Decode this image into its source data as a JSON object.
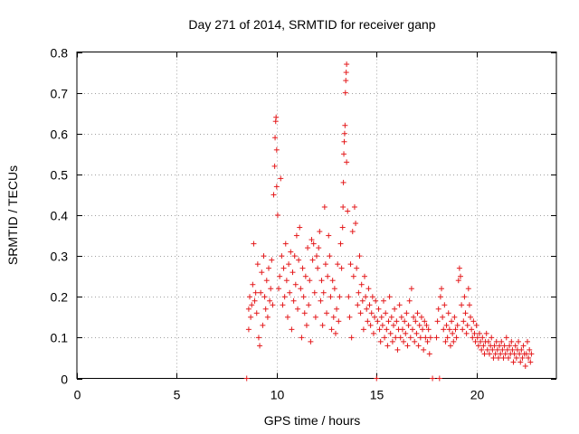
{
  "chart_data": {
    "type": "scatter",
    "title": "Day 271 of 2014, SRMTID for receiver ganp",
    "xlabel": "GPS time / hours",
    "ylabel": "SRMTID / TECUs",
    "xlim": [
      0,
      24
    ],
    "ylim": [
      0,
      0.8
    ],
    "x_ticks": [
      0,
      5,
      10,
      15,
      20
    ],
    "x_tick_labels": [
      "0",
      "5",
      "10",
      "15",
      "20"
    ],
    "y_ticks": [
      0,
      0.1,
      0.2,
      0.3,
      0.4,
      0.5,
      0.6,
      0.7,
      0.8
    ],
    "y_tick_labels": [
      "0",
      "0.1",
      "0.2",
      "0.3",
      "0.4",
      "0.5",
      "0.6",
      "0.7",
      "0.8"
    ],
    "grid": true,
    "legend": "none",
    "marker": "+",
    "color": "#e41a1c",
    "series": [
      {
        "name": "SRMTID",
        "points": [
          [
            8.5,
            0.0
          ],
          [
            8.6,
            0.17
          ],
          [
            8.6,
            0.12
          ],
          [
            8.65,
            0.2
          ],
          [
            8.7,
            0.15
          ],
          [
            8.75,
            0.18
          ],
          [
            8.8,
            0.23
          ],
          [
            8.85,
            0.33
          ],
          [
            8.9,
            0.19
          ],
          [
            8.95,
            0.21
          ],
          [
            9.0,
            0.16
          ],
          [
            9.05,
            0.28
          ],
          [
            9.1,
            0.1
          ],
          [
            9.15,
            0.08
          ],
          [
            9.2,
            0.21
          ],
          [
            9.25,
            0.26
          ],
          [
            9.3,
            0.13
          ],
          [
            9.35,
            0.3
          ],
          [
            9.4,
            0.2
          ],
          [
            9.45,
            0.17
          ],
          [
            9.5,
            0.24
          ],
          [
            9.55,
            0.15
          ],
          [
            9.6,
            0.27
          ],
          [
            9.65,
            0.19
          ],
          [
            9.7,
            0.22
          ],
          [
            9.75,
            0.29
          ],
          [
            9.8,
            0.18
          ],
          [
            9.85,
            0.45
          ],
          [
            9.9,
            0.52
          ],
          [
            9.92,
            0.59
          ],
          [
            9.95,
            0.63
          ],
          [
            9.97,
            0.64
          ],
          [
            10.0,
            0.56
          ],
          [
            10.0,
            0.47
          ],
          [
            10.05,
            0.4
          ],
          [
            10.1,
            0.22
          ],
          [
            10.15,
            0.25
          ],
          [
            10.2,
            0.49
          ],
          [
            10.25,
            0.3
          ],
          [
            10.3,
            0.18
          ],
          [
            10.35,
            0.27
          ],
          [
            10.4,
            0.2
          ],
          [
            10.45,
            0.33
          ],
          [
            10.5,
            0.24
          ],
          [
            10.55,
            0.15
          ],
          [
            10.6,
            0.28
          ],
          [
            10.65,
            0.21
          ],
          [
            10.7,
            0.31
          ],
          [
            10.75,
            0.12
          ],
          [
            10.8,
            0.26
          ],
          [
            10.85,
            0.19
          ],
          [
            10.9,
            0.3
          ],
          [
            10.95,
            0.23
          ],
          [
            11.0,
            0.35
          ],
          [
            11.05,
            0.17
          ],
          [
            11.1,
            0.29
          ],
          [
            11.15,
            0.37
          ],
          [
            11.2,
            0.22
          ],
          [
            11.25,
            0.1
          ],
          [
            11.3,
            0.27
          ],
          [
            11.35,
            0.2
          ],
          [
            11.4,
            0.16
          ],
          [
            11.45,
            0.25
          ],
          [
            11.5,
            0.13
          ],
          [
            11.55,
            0.32
          ],
          [
            11.6,
            0.18
          ],
          [
            11.65,
            0.24
          ],
          [
            11.7,
            0.09
          ],
          [
            11.75,
            0.34
          ],
          [
            11.8,
            0.29
          ],
          [
            11.85,
            0.33
          ],
          [
            11.9,
            0.21
          ],
          [
            11.95,
            0.15
          ],
          [
            12.0,
            0.3
          ],
          [
            12.05,
            0.27
          ],
          [
            12.1,
            0.32
          ],
          [
            12.15,
            0.36
          ],
          [
            12.2,
            0.19
          ],
          [
            12.25,
            0.24
          ],
          [
            12.3,
            0.13
          ],
          [
            12.35,
            0.21
          ],
          [
            12.4,
            0.42
          ],
          [
            12.45,
            0.28
          ],
          [
            12.5,
            0.16
          ],
          [
            12.55,
            0.25
          ],
          [
            12.6,
            0.35
          ],
          [
            12.65,
            0.3
          ],
          [
            12.7,
            0.2
          ],
          [
            12.75,
            0.12
          ],
          [
            12.8,
            0.24
          ],
          [
            12.85,
            0.15
          ],
          [
            12.9,
            0.22
          ],
          [
            12.95,
            0.11
          ],
          [
            13.0,
            0.17
          ],
          [
            13.05,
            0.28
          ],
          [
            13.1,
            0.14
          ],
          [
            13.15,
            0.2
          ],
          [
            13.2,
            0.33
          ],
          [
            13.25,
            0.27
          ],
          [
            13.3,
            0.37
          ],
          [
            13.32,
            0.42
          ],
          [
            13.34,
            0.48
          ],
          [
            13.36,
            0.55
          ],
          [
            13.38,
            0.58
          ],
          [
            13.4,
            0.6
          ],
          [
            13.42,
            0.62
          ],
          [
            13.44,
            0.7
          ],
          [
            13.46,
            0.73
          ],
          [
            13.48,
            0.75
          ],
          [
            13.5,
            0.77
          ],
          [
            13.5,
            0.53
          ],
          [
            13.55,
            0.41
          ],
          [
            13.6,
            0.2
          ],
          [
            13.65,
            0.15
          ],
          [
            13.7,
            0.28
          ],
          [
            13.75,
            0.1
          ],
          [
            13.8,
            0.36
          ],
          [
            13.85,
            0.25
          ],
          [
            13.9,
            0.42
          ],
          [
            13.95,
            0.38
          ],
          [
            14.0,
            0.27
          ],
          [
            14.05,
            0.18
          ],
          [
            14.1,
            0.21
          ],
          [
            14.15,
            0.3
          ],
          [
            14.2,
            0.16
          ],
          [
            14.25,
            0.23
          ],
          [
            14.3,
            0.19
          ],
          [
            14.35,
            0.12
          ],
          [
            14.4,
            0.25
          ],
          [
            14.45,
            0.2
          ],
          [
            14.5,
            0.17
          ],
          [
            14.55,
            0.14
          ],
          [
            14.6,
            0.22
          ],
          [
            14.65,
            0.18
          ],
          [
            14.7,
            0.13
          ],
          [
            14.75,
            0.16
          ],
          [
            14.8,
            0.2
          ],
          [
            14.85,
            0.11
          ],
          [
            14.9,
            0.15
          ],
          [
            14.95,
            0.19
          ],
          [
            15.0,
            0.0
          ],
          [
            15.05,
            0.14
          ],
          [
            15.1,
            0.17
          ],
          [
            15.15,
            0.12
          ],
          [
            15.2,
            0.09
          ],
          [
            15.25,
            0.15
          ],
          [
            15.3,
            0.13
          ],
          [
            15.35,
            0.19
          ],
          [
            15.4,
            0.1
          ],
          [
            15.45,
            0.16
          ],
          [
            15.5,
            0.12
          ],
          [
            15.55,
            0.08
          ],
          [
            15.6,
            0.14
          ],
          [
            15.65,
            0.2
          ],
          [
            15.7,
            0.11
          ],
          [
            15.75,
            0.15
          ],
          [
            15.8,
            0.09
          ],
          [
            15.85,
            0.13
          ],
          [
            15.9,
            0.17
          ],
          [
            15.95,
            0.1
          ],
          [
            16.0,
            0.14
          ],
          [
            16.05,
            0.07
          ],
          [
            16.1,
            0.12
          ],
          [
            16.15,
            0.18
          ],
          [
            16.2,
            0.1
          ],
          [
            16.25,
            0.15
          ],
          [
            16.3,
            0.12
          ],
          [
            16.35,
            0.09
          ],
          [
            16.4,
            0.14
          ],
          [
            16.45,
            0.11
          ],
          [
            16.5,
            0.16
          ],
          [
            16.55,
            0.08
          ],
          [
            16.6,
            0.13
          ],
          [
            16.65,
            0.19
          ],
          [
            16.7,
            0.1
          ],
          [
            16.75,
            0.22
          ],
          [
            16.8,
            0.12
          ],
          [
            16.85,
            0.15
          ],
          [
            16.9,
            0.09
          ],
          [
            16.95,
            0.14
          ],
          [
            17.0,
            0.11
          ],
          [
            17.05,
            0.16
          ],
          [
            17.1,
            0.08
          ],
          [
            17.15,
            0.13
          ],
          [
            17.2,
            0.1
          ],
          [
            17.25,
            0.15
          ],
          [
            17.3,
            0.12
          ],
          [
            17.35,
            0.07
          ],
          [
            17.4,
            0.14
          ],
          [
            17.45,
            0.1
          ],
          [
            17.5,
            0.13
          ],
          [
            17.55,
            0.09
          ],
          [
            17.6,
            0.12
          ],
          [
            17.65,
            0.06
          ],
          [
            17.7,
            0.1
          ],
          [
            17.8,
            0.0
          ],
          [
            18.0,
            0.1
          ],
          [
            18.05,
            0.14
          ],
          [
            18.1,
            0.17
          ],
          [
            18.15,
            0.0
          ],
          [
            18.2,
            0.2
          ],
          [
            18.25,
            0.22
          ],
          [
            18.3,
            0.15
          ],
          [
            18.35,
            0.12
          ],
          [
            18.4,
            0.18
          ],
          [
            18.45,
            0.09
          ],
          [
            18.5,
            0.13
          ],
          [
            18.55,
            0.1
          ],
          [
            18.6,
            0.16
          ],
          [
            18.65,
            0.12
          ],
          [
            18.7,
            0.08
          ],
          [
            18.75,
            0.14
          ],
          [
            18.8,
            0.11
          ],
          [
            18.85,
            0.09
          ],
          [
            18.9,
            0.15
          ],
          [
            18.95,
            0.12
          ],
          [
            19.0,
            0.1
          ],
          [
            19.05,
            0.13
          ],
          [
            19.1,
            0.24
          ],
          [
            19.15,
            0.27
          ],
          [
            19.2,
            0.25
          ],
          [
            19.25,
            0.18
          ],
          [
            19.3,
            0.12
          ],
          [
            19.35,
            0.14
          ],
          [
            19.4,
            0.2
          ],
          [
            19.45,
            0.16
          ],
          [
            19.5,
            0.11
          ],
          [
            19.55,
            0.13
          ],
          [
            19.6,
            0.22
          ],
          [
            19.65,
            0.18
          ],
          [
            19.7,
            0.15
          ],
          [
            19.75,
            0.12
          ],
          [
            19.8,
            0.1
          ],
          [
            19.85,
            0.14
          ],
          [
            19.9,
            0.11
          ],
          [
            19.95,
            0.09
          ],
          [
            20.0,
            0.13
          ],
          [
            20.05,
            0.1
          ],
          [
            20.1,
            0.08
          ],
          [
            20.15,
            0.11
          ],
          [
            20.2,
            0.09
          ],
          [
            20.25,
            0.07
          ],
          [
            20.3,
            0.1
          ],
          [
            20.35,
            0.08
          ],
          [
            20.4,
            0.06
          ],
          [
            20.45,
            0.09
          ],
          [
            20.5,
            0.11
          ],
          [
            20.55,
            0.07
          ],
          [
            20.6,
            0.09
          ],
          [
            20.65,
            0.06
          ],
          [
            20.7,
            0.08
          ],
          [
            20.75,
            0.1
          ],
          [
            20.8,
            0.07
          ],
          [
            20.85,
            0.05
          ],
          [
            20.9,
            0.08
          ],
          [
            20.95,
            0.06
          ],
          [
            21.0,
            0.09
          ],
          [
            21.05,
            0.07
          ],
          [
            21.1,
            0.05
          ],
          [
            21.15,
            0.08
          ],
          [
            21.2,
            0.06
          ],
          [
            21.25,
            0.09
          ],
          [
            21.3,
            0.07
          ],
          [
            21.35,
            0.05
          ],
          [
            21.4,
            0.08
          ],
          [
            21.45,
            0.06
          ],
          [
            21.5,
            0.1
          ],
          [
            21.55,
            0.07
          ],
          [
            21.6,
            0.05
          ],
          [
            21.65,
            0.08
          ],
          [
            21.7,
            0.06
          ],
          [
            21.75,
            0.09
          ],
          [
            21.8,
            0.07
          ],
          [
            21.85,
            0.04
          ],
          [
            21.9,
            0.06
          ],
          [
            21.95,
            0.08
          ],
          [
            22.0,
            0.05
          ],
          [
            22.05,
            0.07
          ],
          [
            22.1,
            0.09
          ],
          [
            22.15,
            0.06
          ],
          [
            22.2,
            0.04
          ],
          [
            22.25,
            0.07
          ],
          [
            22.3,
            0.05
          ],
          [
            22.35,
            0.08
          ],
          [
            22.4,
            0.06
          ],
          [
            22.45,
            0.03
          ],
          [
            22.5,
            0.06
          ],
          [
            22.55,
            0.09
          ],
          [
            22.6,
            0.05
          ],
          [
            22.65,
            0.07
          ],
          [
            22.7,
            0.04
          ],
          [
            22.75,
            0.06
          ]
        ]
      }
    ]
  }
}
